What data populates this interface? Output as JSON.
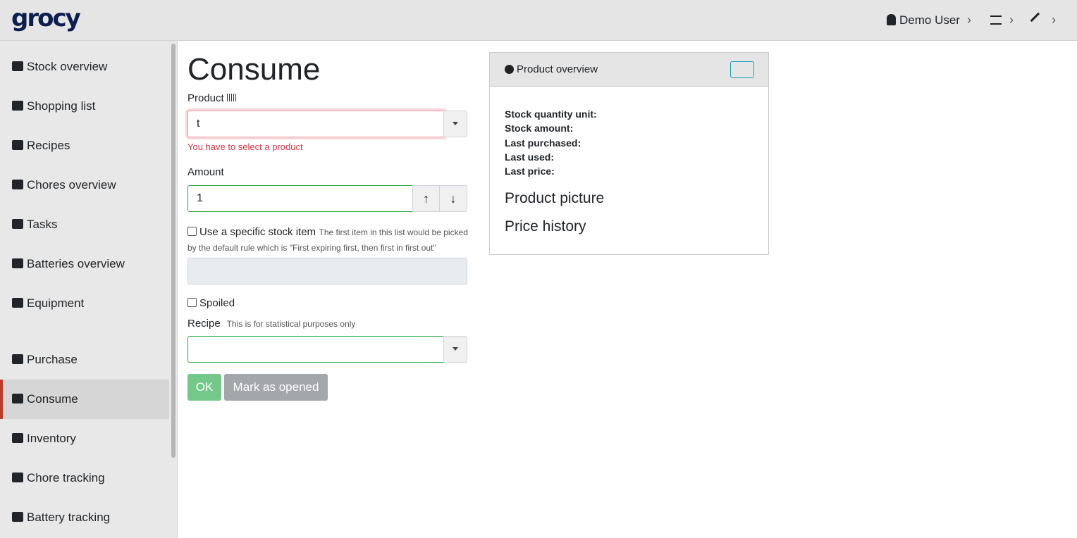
{
  "header": {
    "logo": "grocy",
    "user": "Demo User"
  },
  "sidebar": {
    "items": [
      "Stock overview",
      "Shopping list",
      "Recipes",
      "Chores overview",
      "Tasks",
      "Batteries overview",
      "Equipment",
      "Purchase",
      "Consume",
      "Inventory",
      "Chore tracking",
      "Battery tracking"
    ]
  },
  "form": {
    "title": "Consume",
    "product": {
      "label": "Product",
      "value": "t",
      "error": "You have to select a product"
    },
    "amount": {
      "label": "Amount",
      "value": "1"
    },
    "specific_stock": {
      "label": "Use a specific stock item",
      "hint": "The first item in this list would be picked by the default rule which is \"First expiring first, then first in first out\""
    },
    "spoiled": {
      "label": "Spoiled"
    },
    "recipe": {
      "label": "Recipe",
      "hint": "This is for statistical purposes only"
    },
    "buttons": [
      "OK",
      "Mark as opened"
    ]
  },
  "panel": {
    "title": "Product overview",
    "fields": [
      "Stock quantity unit:",
      "Stock amount:",
      "Last purchased:",
      "Last used:",
      "Last price:"
    ],
    "sections": [
      "Product picture",
      "Price history"
    ]
  }
}
